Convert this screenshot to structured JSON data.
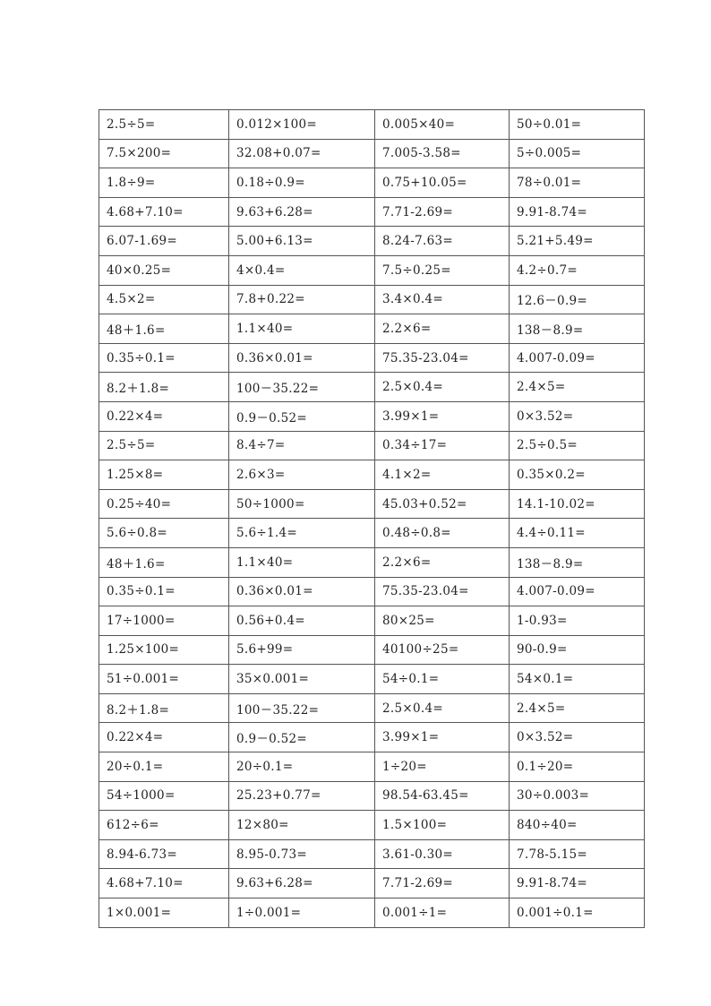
{
  "worksheet": {
    "rows": [
      [
        "2.5÷5=",
        "0.012×100=",
        "0.005×40=",
        "50÷0.01="
      ],
      [
        "7.5×200=",
        "32.08+0.07=",
        "7.005-3.58=",
        "5÷0.005="
      ],
      [
        "1.8÷9=",
        "0.18÷0.9=",
        "0.75+10.05=",
        "78÷0.01="
      ],
      [
        "4.68+7.10=",
        "9.63+6.28=",
        "7.71-2.69=",
        "9.91-8.74="
      ],
      [
        "6.07-1.69=",
        "5.00+6.13=",
        "8.24-7.63=",
        "5.21+5.49="
      ],
      [
        "40×0.25=",
        "4×0.4=",
        "7.5÷0.25=",
        "4.2÷0.7="
      ],
      [
        "4.5×2=",
        "7.8+0.22=",
        "3.4×0.4=",
        "12.6－0.9="
      ],
      [
        "48＋1.6=",
        "1.1×40=",
        "2.2×6=",
        "138－8.9="
      ],
      [
        "0.35÷0.1=",
        "0.36×0.01=",
        "75.35-23.04=",
        "4.007-0.09="
      ],
      [
        "8.2＋1.8=",
        "100－35.22=",
        "2.5×0.4=",
        "2.4×5="
      ],
      [
        "0.22×4=",
        "0.9－0.52=",
        "3.99×1=",
        "0×3.52="
      ],
      [
        "2.5÷5=",
        "8.4÷7=",
        "0.34÷17=",
        "2.5÷0.5="
      ],
      [
        "1.25×8=",
        "2.6×3=",
        "4.1×2=",
        "0.35×0.2="
      ],
      [
        "0.25÷40=",
        "50÷1000=",
        "45.03+0.52=",
        "14.1-10.02="
      ],
      [
        "5.6÷0.8=",
        "5.6÷1.4=",
        "0.48÷0.8=",
        "4.4÷0.11="
      ],
      [
        "48＋1.6=",
        "1.1×40=",
        "2.2×6=",
        "138－8.9="
      ],
      [
        "0.35÷0.1=",
        "0.36×0.01=",
        "75.35-23.04=",
        "4.007-0.09="
      ],
      [
        "17÷1000=",
        "0.56+0.4=",
        "80×25=",
        "1-0.93="
      ],
      [
        "1.25×100=",
        "5.6+99=",
        "40100÷25=",
        "90-0.9="
      ],
      [
        "51÷0.001=",
        "35×0.001=",
        "54÷0.1=",
        "54×0.1="
      ],
      [
        "8.2＋1.8=",
        "100－35.22=",
        "2.5×0.4=",
        "2.4×5="
      ],
      [
        "0.22×4=",
        "0.9－0.52=",
        "3.99×1=",
        "0×3.52="
      ],
      [
        "20÷0.1=",
        "20÷0.1=",
        "1÷20=",
        "0.1÷20="
      ],
      [
        "54÷1000=",
        "25.23+0.77=",
        "98.54-63.45=",
        "30÷0.003="
      ],
      [
        "612÷6=",
        "12×80=",
        "1.5×100=",
        "840÷40="
      ],
      [
        "8.94-6.73=",
        "8.95-0.73=",
        "3.61-0.30=",
        "7.78-5.15="
      ],
      [
        "4.68+7.10=",
        "9.63+6.28=",
        "7.71-2.69=",
        "9.91-8.74="
      ],
      [
        "1×0.001=",
        "1÷0.001=",
        "0.001÷1=",
        "0.001÷0.1="
      ]
    ]
  }
}
